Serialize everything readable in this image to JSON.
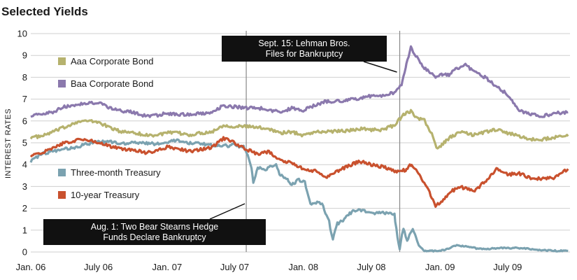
{
  "chart_data": {
    "type": "line",
    "title": "Selected Yields",
    "ylabel": "INTEREST RATES",
    "xlabel": "",
    "ylim": [
      0,
      10
    ],
    "y_ticks": [
      0,
      1,
      2,
      3,
      4,
      5,
      6,
      7,
      8,
      9,
      10
    ],
    "x_range": [
      "2006-01-01",
      "2009-12-15"
    ],
    "x_ticks": [
      {
        "date": "2006-01-01",
        "label": "Jan. 06"
      },
      {
        "date": "2006-07-01",
        "label": "July 06"
      },
      {
        "date": "2007-01-01",
        "label": "Jan. 07"
      },
      {
        "date": "2007-07-01",
        "label": "July 07"
      },
      {
        "date": "2008-01-01",
        "label": "Jan. 08"
      },
      {
        "date": "2008-07-01",
        "label": "July 08"
      },
      {
        "date": "2009-01-01",
        "label": "Jan. 09"
      },
      {
        "date": "2009-07-01",
        "label": "July 09"
      }
    ],
    "grid": {
      "horizontal": true,
      "vertical": false
    },
    "legend": "left",
    "series": [
      {
        "name": "Aaa Corporate Bond",
        "color": "#b6b26e",
        "points": [
          [
            "2006-01-01",
            5.25
          ],
          [
            "2006-02-01",
            5.3
          ],
          [
            "2006-03-01",
            5.5
          ],
          [
            "2006-04-01",
            5.7
          ],
          [
            "2006-05-01",
            5.95
          ],
          [
            "2006-06-01",
            6.0
          ],
          [
            "2006-07-01",
            5.95
          ],
          [
            "2006-08-01",
            5.7
          ],
          [
            "2006-09-01",
            5.5
          ],
          [
            "2006-10-01",
            5.5
          ],
          [
            "2006-11-01",
            5.35
          ],
          [
            "2006-12-01",
            5.35
          ],
          [
            "2007-01-01",
            5.45
          ],
          [
            "2007-02-01",
            5.45
          ],
          [
            "2007-03-01",
            5.35
          ],
          [
            "2007-04-01",
            5.45
          ],
          [
            "2007-05-01",
            5.5
          ],
          [
            "2007-06-01",
            5.8
          ],
          [
            "2007-07-01",
            5.75
          ],
          [
            "2007-08-01",
            5.75
          ],
          [
            "2007-09-01",
            5.7
          ],
          [
            "2007-10-01",
            5.65
          ],
          [
            "2007-11-01",
            5.45
          ],
          [
            "2007-12-01",
            5.5
          ],
          [
            "2008-01-01",
            5.35
          ],
          [
            "2008-02-01",
            5.5
          ],
          [
            "2008-03-01",
            5.5
          ],
          [
            "2008-04-01",
            5.55
          ],
          [
            "2008-05-01",
            5.55
          ],
          [
            "2008-06-01",
            5.65
          ],
          [
            "2008-07-01",
            5.6
          ],
          [
            "2008-08-01",
            5.6
          ],
          [
            "2008-09-01",
            5.8
          ],
          [
            "2008-09-25",
            6.3
          ],
          [
            "2008-10-15",
            6.45
          ],
          [
            "2008-11-01",
            6.1
          ],
          [
            "2008-11-20",
            6.05
          ],
          [
            "2008-12-10",
            5.4
          ],
          [
            "2008-12-25",
            4.7
          ],
          [
            "2009-01-15",
            5.05
          ],
          [
            "2009-02-01",
            5.3
          ],
          [
            "2009-03-01",
            5.5
          ],
          [
            "2009-04-01",
            5.35
          ],
          [
            "2009-05-01",
            5.5
          ],
          [
            "2009-06-01",
            5.6
          ],
          [
            "2009-07-01",
            5.45
          ],
          [
            "2009-08-01",
            5.3
          ],
          [
            "2009-09-01",
            5.15
          ],
          [
            "2009-10-01",
            5.15
          ],
          [
            "2009-11-01",
            5.25
          ],
          [
            "2009-12-10",
            5.3
          ]
        ]
      },
      {
        "name": "Baa Corporate Bond",
        "color": "#8b79ad",
        "points": [
          [
            "2006-01-01",
            6.25
          ],
          [
            "2006-02-01",
            6.3
          ],
          [
            "2006-03-01",
            6.4
          ],
          [
            "2006-04-01",
            6.65
          ],
          [
            "2006-05-01",
            6.75
          ],
          [
            "2006-06-01",
            6.8
          ],
          [
            "2006-07-01",
            6.85
          ],
          [
            "2006-08-01",
            6.6
          ],
          [
            "2006-09-01",
            6.45
          ],
          [
            "2006-10-01",
            6.4
          ],
          [
            "2006-11-01",
            6.25
          ],
          [
            "2006-12-01",
            6.25
          ],
          [
            "2007-01-01",
            6.35
          ],
          [
            "2007-02-01",
            6.3
          ],
          [
            "2007-03-01",
            6.3
          ],
          [
            "2007-04-01",
            6.35
          ],
          [
            "2007-05-01",
            6.4
          ],
          [
            "2007-06-01",
            6.7
          ],
          [
            "2007-07-01",
            6.65
          ],
          [
            "2007-08-01",
            6.6
          ],
          [
            "2007-09-01",
            6.6
          ],
          [
            "2007-10-01",
            6.5
          ],
          [
            "2007-11-01",
            6.4
          ],
          [
            "2007-12-01",
            6.6
          ],
          [
            "2008-01-01",
            6.5
          ],
          [
            "2008-02-01",
            6.7
          ],
          [
            "2008-03-01",
            6.9
          ],
          [
            "2008-04-01",
            6.9
          ],
          [
            "2008-05-01",
            6.95
          ],
          [
            "2008-06-01",
            7.05
          ],
          [
            "2008-07-01",
            7.15
          ],
          [
            "2008-08-01",
            7.15
          ],
          [
            "2008-09-01",
            7.3
          ],
          [
            "2008-09-20",
            7.7
          ],
          [
            "2008-10-01",
            8.4
          ],
          [
            "2008-10-15",
            9.4
          ],
          [
            "2008-10-25",
            9.1
          ],
          [
            "2008-11-15",
            8.5
          ],
          [
            "2008-12-05",
            8.2
          ],
          [
            "2008-12-20",
            8.0
          ],
          [
            "2009-01-05",
            8.1
          ],
          [
            "2009-01-25",
            8.1
          ],
          [
            "2009-02-15",
            8.4
          ],
          [
            "2009-03-10",
            8.55
          ],
          [
            "2009-04-01",
            8.3
          ],
          [
            "2009-05-01",
            8.0
          ],
          [
            "2009-06-01",
            7.6
          ],
          [
            "2009-07-01",
            7.2
          ],
          [
            "2009-08-01",
            6.5
          ],
          [
            "2009-09-01",
            6.3
          ],
          [
            "2009-10-01",
            6.2
          ],
          [
            "2009-11-01",
            6.35
          ],
          [
            "2009-12-10",
            6.4
          ]
        ]
      },
      {
        "name": "Three-month Treasury",
        "color": "#7ba2b0",
        "points": [
          [
            "2006-01-01",
            4.15
          ],
          [
            "2006-02-01",
            4.5
          ],
          [
            "2006-03-01",
            4.6
          ],
          [
            "2006-04-01",
            4.7
          ],
          [
            "2006-05-01",
            4.8
          ],
          [
            "2006-06-01",
            4.95
          ],
          [
            "2006-07-01",
            5.05
          ],
          [
            "2006-08-01",
            5.05
          ],
          [
            "2006-09-01",
            4.95
          ],
          [
            "2006-10-01",
            5.0
          ],
          [
            "2006-11-01",
            5.0
          ],
          [
            "2006-12-01",
            4.95
          ],
          [
            "2007-01-01",
            5.05
          ],
          [
            "2007-02-01",
            5.1
          ],
          [
            "2007-03-01",
            5.0
          ],
          [
            "2007-04-01",
            4.95
          ],
          [
            "2007-05-01",
            4.9
          ],
          [
            "2007-06-01",
            4.85
          ],
          [
            "2007-07-01",
            4.9
          ],
          [
            "2007-07-25",
            4.8
          ],
          [
            "2007-08-05",
            4.5
          ],
          [
            "2007-08-15",
            3.9
          ],
          [
            "2007-08-20",
            3.2
          ],
          [
            "2007-09-01",
            3.9
          ],
          [
            "2007-09-20",
            3.75
          ],
          [
            "2007-10-01",
            3.9
          ],
          [
            "2007-10-20",
            3.95
          ],
          [
            "2007-11-01",
            3.5
          ],
          [
            "2007-11-20",
            3.3
          ],
          [
            "2007-12-01",
            3.1
          ],
          [
            "2007-12-20",
            3.3
          ],
          [
            "2008-01-05",
            3.2
          ],
          [
            "2008-01-20",
            2.2
          ],
          [
            "2008-02-01",
            2.3
          ],
          [
            "2008-02-20",
            2.2
          ],
          [
            "2008-03-10",
            1.4
          ],
          [
            "2008-03-20",
            0.6
          ],
          [
            "2008-04-01",
            1.3
          ],
          [
            "2008-04-20",
            1.5
          ],
          [
            "2008-05-10",
            1.85
          ],
          [
            "2008-06-01",
            1.9
          ],
          [
            "2008-06-20",
            1.85
          ],
          [
            "2008-07-10",
            1.8
          ],
          [
            "2008-08-01",
            1.8
          ],
          [
            "2008-09-01",
            1.7
          ],
          [
            "2008-09-15",
            0.1
          ],
          [
            "2008-09-25",
            1.1
          ],
          [
            "2008-10-05",
            0.5
          ],
          [
            "2008-10-20",
            1.1
          ],
          [
            "2008-11-05",
            0.3
          ],
          [
            "2008-11-20",
            0.05
          ],
          [
            "2008-12-20",
            0.05
          ],
          [
            "2009-01-15",
            0.1
          ],
          [
            "2009-02-15",
            0.3
          ],
          [
            "2009-03-15",
            0.25
          ],
          [
            "2009-04-15",
            0.15
          ],
          [
            "2009-05-15",
            0.15
          ],
          [
            "2009-06-15",
            0.18
          ],
          [
            "2009-07-15",
            0.18
          ],
          [
            "2009-08-15",
            0.17
          ],
          [
            "2009-09-15",
            0.1
          ],
          [
            "2009-10-15",
            0.07
          ],
          [
            "2009-11-15",
            0.05
          ],
          [
            "2009-12-10",
            0.05
          ]
        ]
      },
      {
        "name": "10-year Treasury",
        "color": "#c9512e",
        "points": [
          [
            "2006-01-01",
            4.4
          ],
          [
            "2006-02-01",
            4.55
          ],
          [
            "2006-03-01",
            4.75
          ],
          [
            "2006-04-01",
            5.0
          ],
          [
            "2006-05-01",
            5.1
          ],
          [
            "2006-06-01",
            5.15
          ],
          [
            "2006-07-01",
            5.0
          ],
          [
            "2006-08-01",
            4.85
          ],
          [
            "2006-09-01",
            4.7
          ],
          [
            "2006-10-01",
            4.7
          ],
          [
            "2006-11-01",
            4.55
          ],
          [
            "2006-12-01",
            4.6
          ],
          [
            "2007-01-01",
            4.8
          ],
          [
            "2007-02-01",
            4.75
          ],
          [
            "2007-03-01",
            4.6
          ],
          [
            "2007-04-01",
            4.7
          ],
          [
            "2007-05-01",
            4.8
          ],
          [
            "2007-06-01",
            5.2
          ],
          [
            "2007-07-01",
            5.0
          ],
          [
            "2007-08-01",
            4.7
          ],
          [
            "2007-09-01",
            4.5
          ],
          [
            "2007-10-01",
            4.6
          ],
          [
            "2007-11-01",
            4.2
          ],
          [
            "2007-12-01",
            4.1
          ],
          [
            "2008-01-01",
            3.8
          ],
          [
            "2008-02-01",
            3.7
          ],
          [
            "2008-03-01",
            3.4
          ],
          [
            "2008-04-01",
            3.7
          ],
          [
            "2008-05-01",
            3.95
          ],
          [
            "2008-06-01",
            4.15
          ],
          [
            "2008-07-01",
            4.0
          ],
          [
            "2008-08-01",
            3.9
          ],
          [
            "2008-09-01",
            3.7
          ],
          [
            "2008-10-01",
            3.75
          ],
          [
            "2008-10-15",
            4.0
          ],
          [
            "2008-11-01",
            3.7
          ],
          [
            "2008-11-20",
            3.2
          ],
          [
            "2008-12-10",
            2.5
          ],
          [
            "2008-12-20",
            2.1
          ],
          [
            "2009-01-10",
            2.4
          ],
          [
            "2009-02-01",
            2.8
          ],
          [
            "2009-03-01",
            2.95
          ],
          [
            "2009-04-01",
            2.8
          ],
          [
            "2009-05-01",
            3.2
          ],
          [
            "2009-06-01",
            3.8
          ],
          [
            "2009-07-01",
            3.55
          ],
          [
            "2009-08-01",
            3.6
          ],
          [
            "2009-09-01",
            3.4
          ],
          [
            "2009-10-01",
            3.35
          ],
          [
            "2009-11-01",
            3.4
          ],
          [
            "2009-12-10",
            3.8
          ]
        ]
      }
    ],
    "annotations": [
      {
        "date": "2007-08-01",
        "text_lines": [
          "Aug. 1: Two Bear Stearns Hedge",
          "Funds Declare Bankruptcy"
        ]
      },
      {
        "date": "2008-09-15",
        "text_lines": [
          "Sept. 15: Lehman Bros.",
          "Files for Bankruptcy"
        ]
      }
    ]
  }
}
